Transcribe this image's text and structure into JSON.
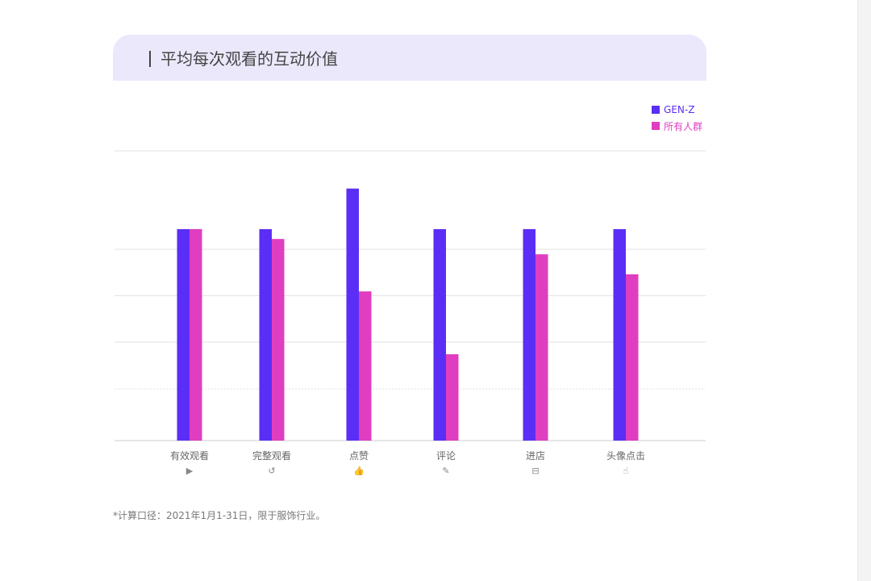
{
  "chart_data": {
    "type": "bar",
    "title": "平均每次观看的互动价值",
    "categories": [
      "有效观看",
      "完整观看",
      "点赞",
      "评论",
      "进店",
      "头像点击"
    ],
    "category_icons": [
      "play-icon",
      "replay-icon",
      "thumbs-up-icon",
      "pencil-icon",
      "store-icon",
      "hand-pointer-icon"
    ],
    "series": [
      {
        "name": "GEN-Z",
        "color": "#5b2ef5",
        "values": [
          73,
          73,
          87,
          73,
          73,
          73
        ]
      },
      {
        "name": "所有人群",
        "color": "#e03ec0",
        "values": [
          73,
          69.6,
          51.5,
          29.8,
          64.3,
          57.4
        ]
      }
    ],
    "xlabel": "",
    "ylabel": "",
    "ylim": [
      0,
      100
    ],
    "grid": true,
    "legend_position": "top-right"
  },
  "footnote": "*计算口径：2021年1月1-31日，限于服饰行业。"
}
